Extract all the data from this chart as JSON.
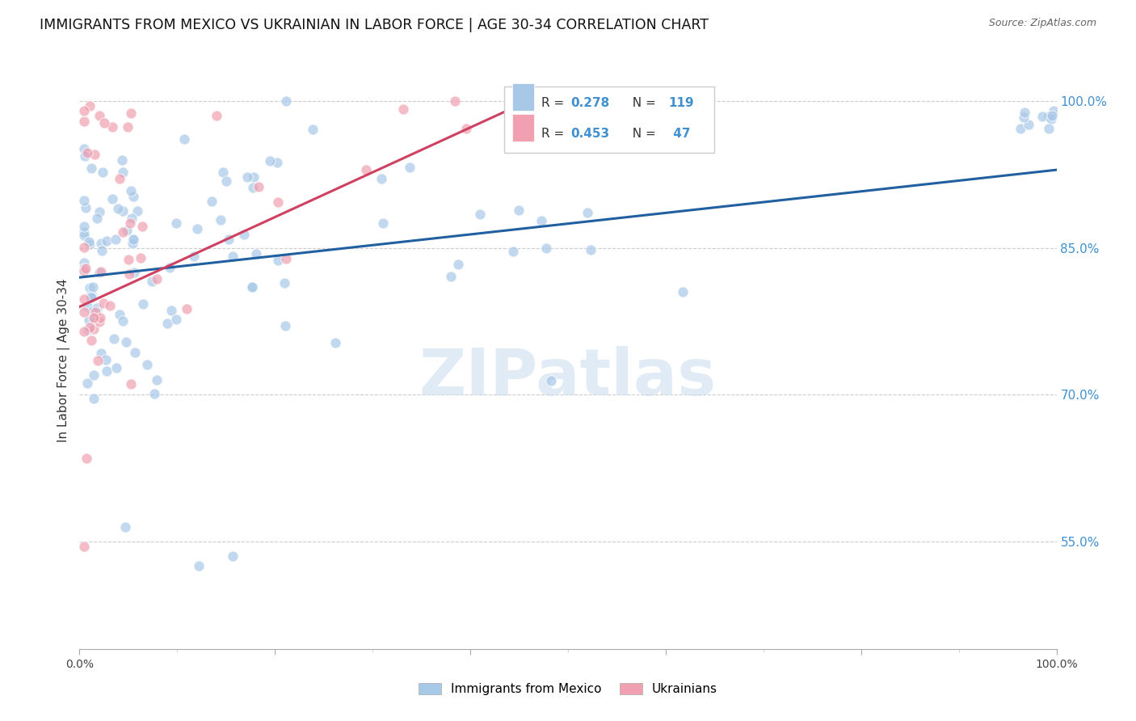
{
  "title": "IMMIGRANTS FROM MEXICO VS UKRAINIAN IN LABOR FORCE | AGE 30-34 CORRELATION CHART",
  "source": "Source: ZipAtlas.com",
  "ylabel": "In Labor Force | Age 30-34",
  "watermark": "ZIPatlas",
  "blue_color": "#a8c8e8",
  "pink_color": "#f0a0b0",
  "blue_line_color": "#2060a0",
  "pink_line_color": "#d04060",
  "background_color": "#ffffff",
  "grid_color": "#cccccc",
  "title_fontsize": 12.5,
  "right_tick_color": "#4090d0",
  "legend_R1": "0.278",
  "legend_N1": "119",
  "legend_R2": "0.453",
  "legend_N2": " 47",
  "ytick_vals": [
    0.55,
    0.7,
    0.85,
    1.0
  ],
  "ytick_labels": [
    "55.0%",
    "70.0%",
    "85.0%",
    "100.0%"
  ],
  "xlim": [
    0.0,
    1.0
  ],
  "ylim": [
    0.44,
    1.03
  ],
  "blue_line_x": [
    0.0,
    1.0
  ],
  "blue_line_y": [
    0.82,
    0.93
  ],
  "pink_line_x": [
    0.0,
    0.48
  ],
  "pink_line_y": [
    0.79,
    1.01
  ]
}
